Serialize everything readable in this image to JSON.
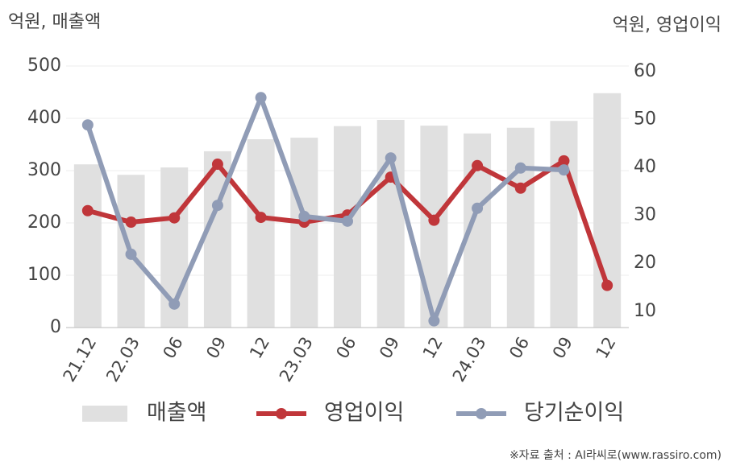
{
  "chart_data": {
    "type": "bar",
    "y_label": "억원, 매출액",
    "y2_label": "억원, 영업이익",
    "source": "※자료 출처 : AI라씨로(www.rassiro.com)",
    "categories": [
      "21.12",
      "22.03",
      "06",
      "09",
      "12",
      "23.03",
      "06",
      "09",
      "12",
      "24.03",
      "06",
      "09",
      "12"
    ],
    "series": [
      {
        "name": "매출액",
        "type": "bar",
        "color": "#e0e0e0",
        "values": [
          312,
          292,
          306,
          337,
          360,
          363,
          385,
          397,
          386,
          371,
          382,
          395,
          448
        ]
      },
      {
        "name": "영업이익",
        "type": "line",
        "axis": "y2",
        "color": "#c0363a",
        "values": [
          31.0,
          28.6,
          29.5,
          40.7,
          29.6,
          28.6,
          30.1,
          38.0,
          29.0,
          40.4,
          35.7,
          41.4,
          15.4
        ]
      },
      {
        "name": "당기순이익",
        "type": "line",
        "axis": "y2",
        "color": "#909cb6",
        "values": [
          48.9,
          21.9,
          11.5,
          32.1,
          54.6,
          29.8,
          28.8,
          42.0,
          8.0,
          31.5,
          39.9,
          39.5,
          null
        ]
      }
    ],
    "ylim": [
      0,
      500
    ],
    "yticks": [
      0,
      100,
      200,
      300,
      400,
      500
    ],
    "y2lim": [
      6.6,
      61.2
    ],
    "y2ticks": [
      10,
      20,
      30,
      40,
      50,
      60
    ],
    "grid": true,
    "legend": "bottom"
  }
}
